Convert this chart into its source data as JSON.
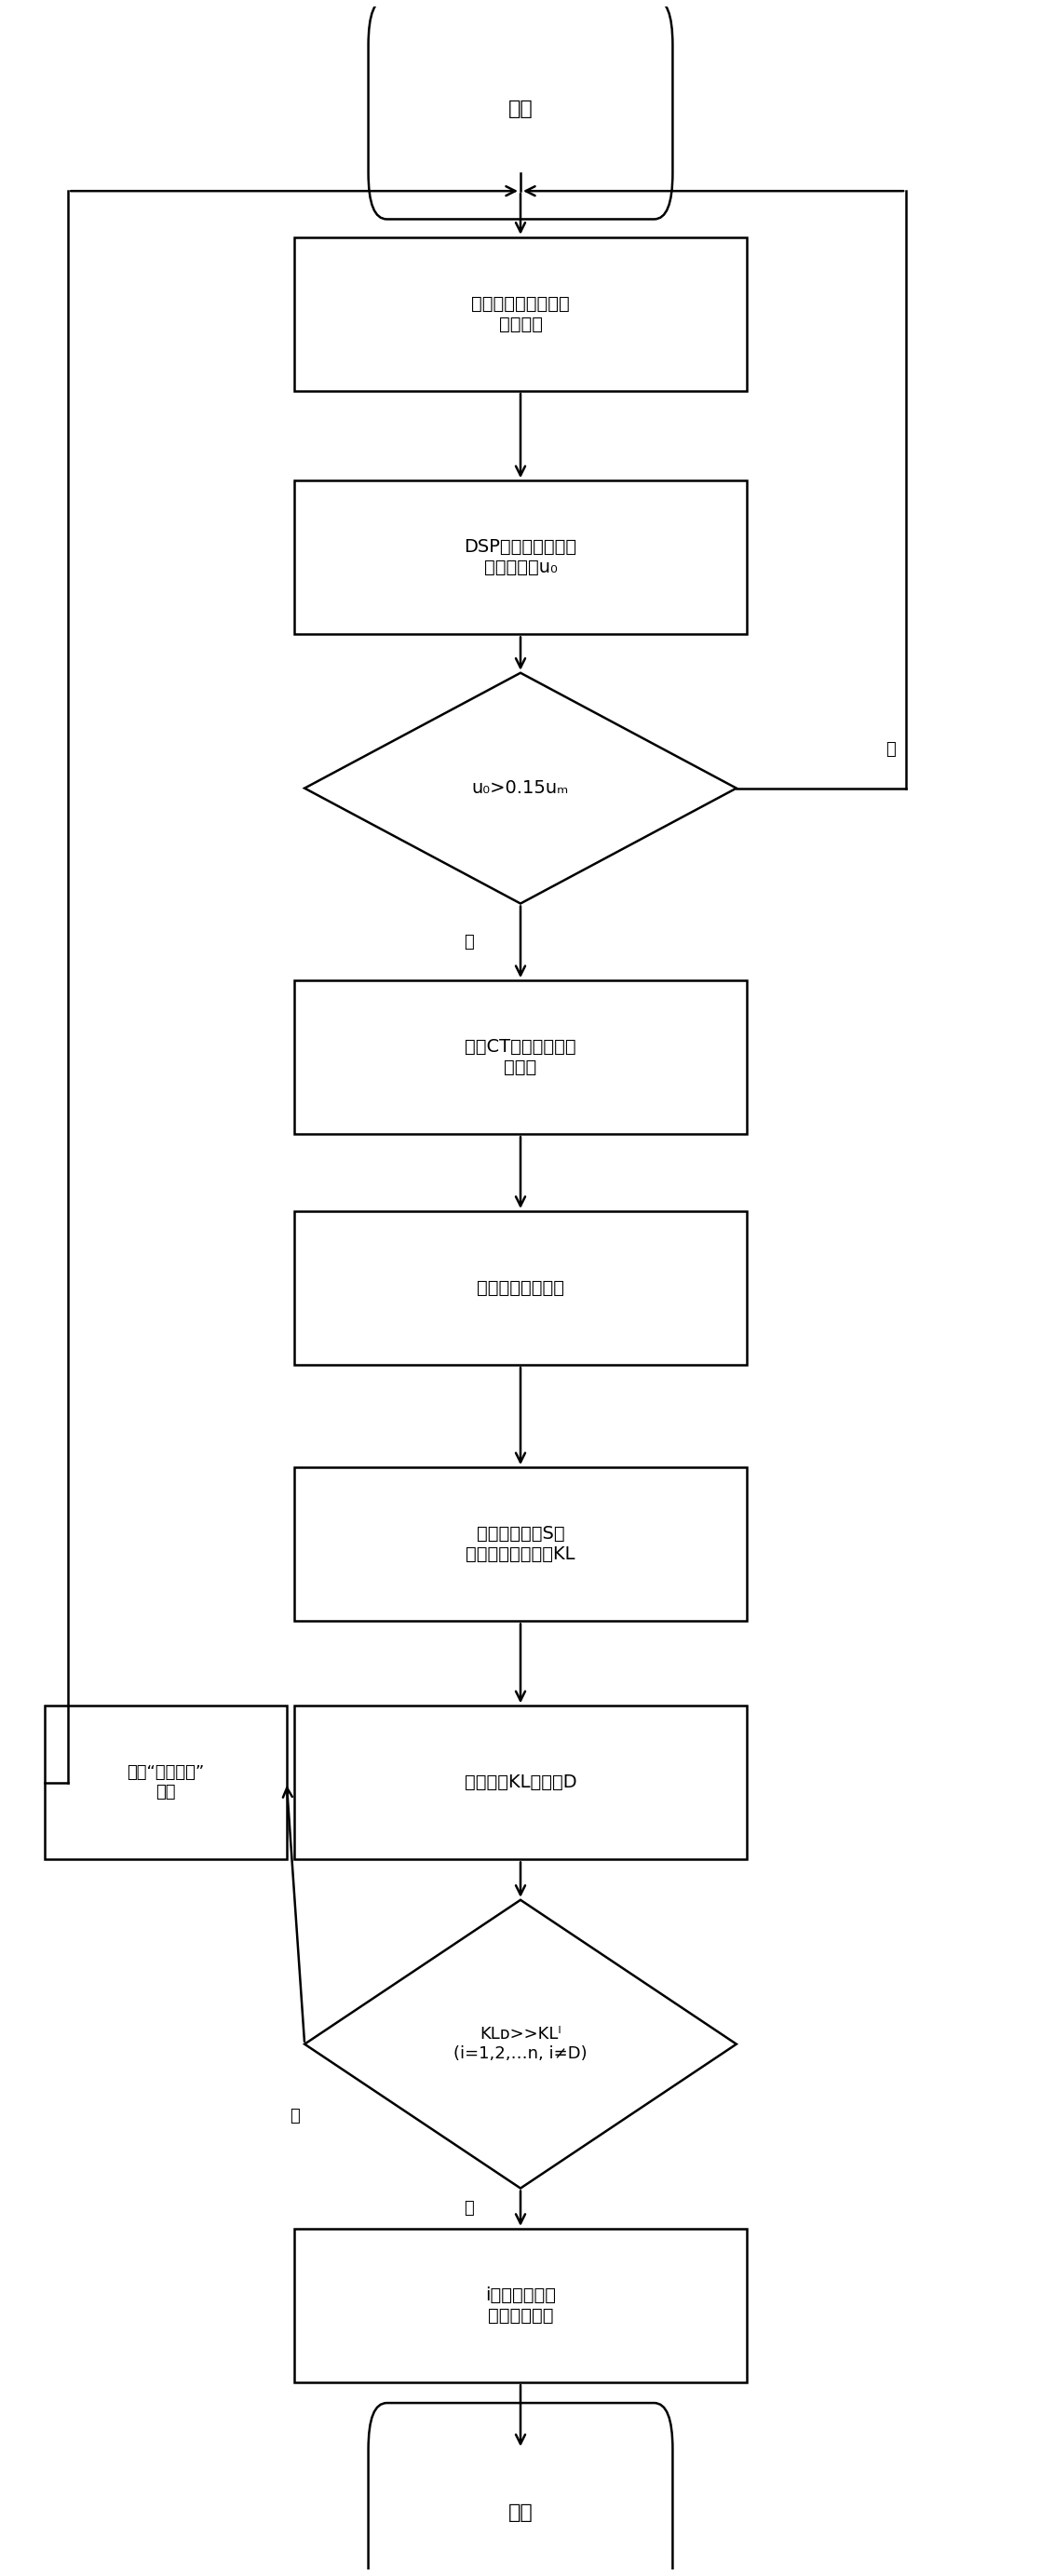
{
  "bg_color": "#ffffff",
  "line_color": "#000000",
  "text_color": "#000000",
  "start_label": "开始",
  "end_label": "结束",
  "box1_label": "电压采集模块采集各\n馈线电压",
  "box2_label": "DSP模块相模变换获\n取零模电压u₀",
  "dia1_label": "u₀>0.15uₘ",
  "dia1_yes": "是",
  "dia1_no": "否",
  "box3_label": "零序CT采集各馈线零\n序电流",
  "box4_label": "数据上传至上位机",
  "box5_label": "进行离散正交S变\n换，计算信息散度KL",
  "box6_label": "选出最大KL的线路D",
  "dia2_label": "KLᴅ>>KLᴵ\n(i=1,2,…n, i≠D)",
  "dia2_yes": "是",
  "dia2_no": "否",
  "box7_label": "i为故障线路，\n通知工作人员",
  "notify_label": "发出“疑似故障”\n通知"
}
